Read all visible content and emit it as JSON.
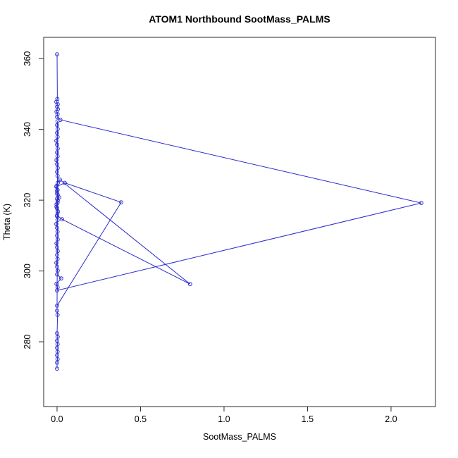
{
  "title": "ATOM1 Northbound SootMass_PALMS",
  "colors": {
    "series": "#2b2bd0",
    "axis": "#2b2b2b",
    "text": "#000000",
    "background": "#ffffff"
  },
  "chart_data": {
    "type": "line",
    "title": "ATOM1 Northbound SootMass_PALMS",
    "xlabel": "SootMass_PALMS",
    "ylabel": "Theta (K)",
    "marker": "open-circle",
    "grid": false,
    "legend": false,
    "xlim": [
      -0.08,
      2.266
    ],
    "ylim": [
      261.7,
      366.0
    ],
    "x_ticks": {
      "values": [
        0,
        0.5,
        1.0,
        1.5,
        2.0
      ],
      "labels": [
        "0.0",
        "0.5",
        "1.0",
        "1.5",
        "2.0"
      ]
    },
    "y_ticks": {
      "values": [
        280,
        300,
        320,
        340,
        360
      ],
      "labels": [
        "280",
        "300",
        "320",
        "340",
        "360"
      ]
    },
    "points": [
      [
        0.0,
        361.2
      ],
      [
        0.002,
        348.6
      ],
      [
        -0.004,
        347.8
      ],
      [
        0.004,
        347.1
      ],
      [
        0.0,
        346.4
      ],
      [
        0.005,
        345.7
      ],
      [
        -0.003,
        345.0
      ],
      [
        0.003,
        344.3
      ],
      [
        0.0,
        343.5
      ],
      [
        0.02,
        342.7
      ],
      [
        2.181,
        319.2
      ],
      [
        0.0,
        294.5
      ],
      [
        0.003,
        295.4
      ],
      [
        -0.003,
        296.4
      ],
      [
        0.025,
        297.9
      ],
      [
        0.0,
        299.0
      ],
      [
        0.004,
        300.1
      ],
      [
        0.0,
        301.2
      ],
      [
        -0.004,
        302.3
      ],
      [
        0.003,
        303.4
      ],
      [
        0.0,
        304.5
      ],
      [
        0.004,
        305.6
      ],
      [
        0.0,
        306.7
      ],
      [
        -0.003,
        307.8
      ],
      [
        0.004,
        308.9
      ],
      [
        0.0,
        310.0
      ],
      [
        0.003,
        311.1
      ],
      [
        0.0,
        312.2
      ],
      [
        -0.004,
        313.3
      ],
      [
        0.003,
        314.4
      ],
      [
        0.0,
        315.5
      ],
      [
        0.004,
        316.6
      ],
      [
        0.0,
        317.7
      ],
      [
        -0.003,
        318.8
      ],
      [
        0.004,
        319.9
      ],
      [
        0.013,
        320.8
      ],
      [
        0.0,
        321.9
      ],
      [
        0.003,
        322.9
      ],
      [
        -0.003,
        324.0
      ],
      [
        0.005,
        324.9
      ],
      [
        0.017,
        325.8
      ],
      [
        0.797,
        296.3
      ],
      [
        0.03,
        314.6
      ],
      [
        0.0,
        315.7
      ],
      [
        0.004,
        316.9
      ],
      [
        -0.003,
        318.1
      ],
      [
        0.003,
        319.3
      ],
      [
        0.0,
        320.4
      ],
      [
        0.004,
        321.5
      ],
      [
        0.0,
        322.6
      ],
      [
        -0.004,
        323.8
      ],
      [
        0.046,
        324.9
      ],
      [
        0.384,
        319.4
      ],
      [
        0.0,
        290.2
      ],
      [
        0.003,
        326.9
      ],
      [
        0.0,
        328.0
      ],
      [
        0.004,
        329.1
      ],
      [
        0.0,
        330.2
      ],
      [
        -0.003,
        331.3
      ],
      [
        0.003,
        332.4
      ],
      [
        0.0,
        333.5
      ],
      [
        0.004,
        334.6
      ],
      [
        0.0,
        335.7
      ],
      [
        -0.004,
        336.8
      ],
      [
        0.003,
        337.9
      ],
      [
        0.0,
        339.0
      ],
      [
        0.004,
        340.1
      ],
      [
        0.0,
        341.2
      ],
      [
        0.003,
        342.3
      ],
      [
        0.0,
        288.8
      ],
      [
        0.003,
        287.6
      ],
      [
        0.0,
        282.4
      ],
      [
        0.004,
        281.4
      ],
      [
        0.0,
        280.3
      ],
      [
        0.003,
        279.3
      ],
      [
        0.0,
        278.3
      ],
      [
        0.003,
        277.2
      ],
      [
        0.0,
        276.2
      ],
      [
        0.003,
        275.1
      ],
      [
        0.0,
        274.1
      ],
      [
        0.0,
        272.4
      ]
    ]
  }
}
